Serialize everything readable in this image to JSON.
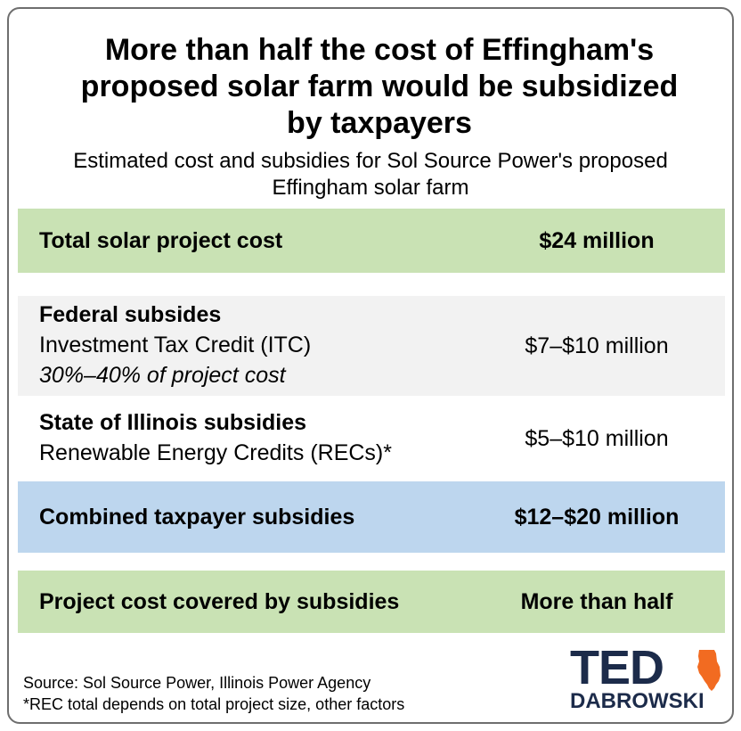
{
  "header": {
    "title_lines": [
      "More than half the cost of Effingham's",
      "proposed solar farm would be subsidized",
      "by taxpayers"
    ],
    "subtitle_lines": [
      "Estimated cost and subsidies for Sol Source Power's proposed",
      "Effingham solar farm"
    ]
  },
  "table": {
    "total": {
      "label": "Total solar project cost",
      "value": "$24 million"
    },
    "federal": {
      "heading": "Federal subsides",
      "line": "Investment Tax Credit (ITC)",
      "note": "30%–40% of project cost",
      "value": "$7–$10 million"
    },
    "state": {
      "heading": "State of Illinois subsidies",
      "line": "Renewable Energy Credits (RECs)*",
      "value": "$5–$10 million"
    },
    "combined": {
      "label": "Combined taxpayer subsidies",
      "value": "$12–$20 million"
    },
    "covered": {
      "label": "Project cost covered by subsidies",
      "value": "More than half"
    }
  },
  "footer": {
    "source": "Source: Sol Source Power, Illinois Power Agency",
    "footnote": "*REC total depends on total project size, other factors"
  },
  "logo": {
    "line1": "TED",
    "line2": "DABROWSKI",
    "icon": "illinois-state-icon",
    "colors": {
      "navy": "#1c2b4a",
      "orange": "#f26b21"
    }
  },
  "colors": {
    "green_row": "#c9e2b4",
    "gray_row": "#f2f2f2",
    "blue_row": "#bdd6ee",
    "border": "#6e6e6e"
  }
}
